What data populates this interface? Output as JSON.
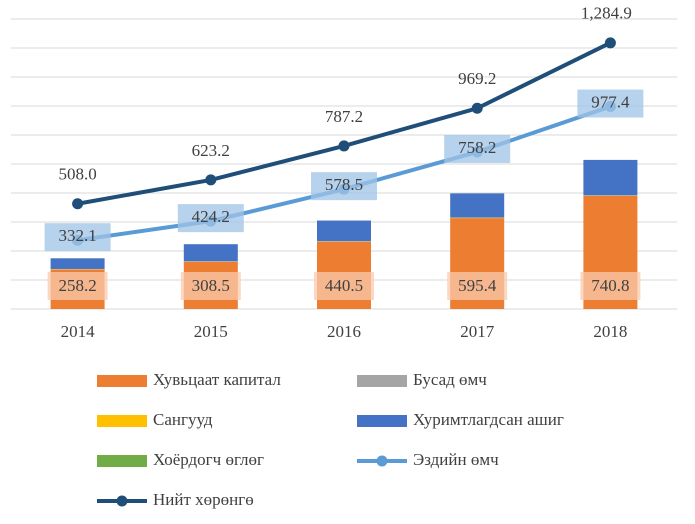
{
  "chart_data": {
    "type": "bar",
    "categories": [
      "2014",
      "2015",
      "2016",
      "2017",
      "2018"
    ],
    "ylim": [
      0,
      1400
    ],
    "yticks": [
      0,
      140,
      280,
      420,
      560,
      700,
      840,
      980,
      1120,
      1260,
      1400
    ],
    "grid": true,
    "y2lim": [
      0,
      1900
    ],
    "series": [
      {
        "name": "Хувьцаат капитал",
        "type": "bar",
        "axis": "y2",
        "color": "#ed7d31",
        "values": [
          258.2,
          308.5,
          440.5,
          595.4,
          740.8
        ],
        "labels": true
      },
      {
        "name": "Бусад өмч",
        "type": "bar",
        "axis": "y2",
        "color": "#a5a5a5",
        "values": [
          2,
          2,
          2,
          2,
          2
        ]
      },
      {
        "name": "Сангууд",
        "type": "bar",
        "axis": "y2",
        "color": "#ffc000",
        "values": [
          2,
          2,
          2,
          2,
          2
        ]
      },
      {
        "name": "Хуримтлагдсан ашиг",
        "type": "bar",
        "axis": "y2",
        "color": "#4472c4",
        "values": [
          70,
          112,
          135,
          158,
          232
        ]
      },
      {
        "name": "Хоёрдогч өглөг",
        "type": "bar",
        "axis": "y2",
        "color": "#70ad47",
        "values": [
          0,
          0,
          0,
          0,
          0
        ]
      },
      {
        "name": "Эздийн өмч",
        "type": "line",
        "color": "#5b9bd5",
        "values": [
          332.1,
          424.2,
          578.5,
          758.2,
          977.4
        ],
        "labels": true
      },
      {
        "name": "Нийт хөрөнгө",
        "type": "line",
        "color": "#1f4e79",
        "values": [
          508.0,
          623.2,
          787.2,
          969.2,
          1284.9
        ],
        "value_labels": [
          "508.0",
          "623.2",
          "787.2",
          "969.2",
          "1,284.9"
        ],
        "labels": true
      }
    ]
  }
}
